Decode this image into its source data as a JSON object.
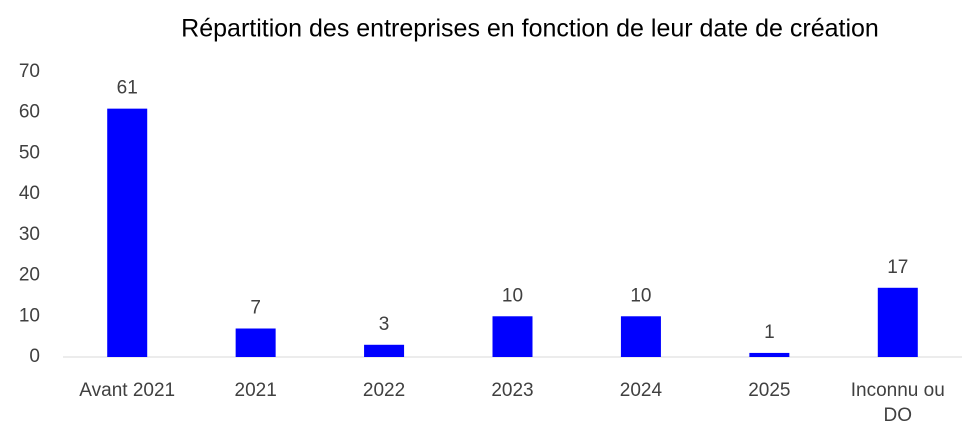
{
  "chart_data": {
    "type": "bar",
    "title": "Répartition des entreprises en fonction de leur date de création",
    "categories": [
      "Avant 2021",
      "2021",
      "2022",
      "2023",
      "2024",
      "2025",
      "Inconnu ou DO"
    ],
    "values": [
      61,
      7,
      3,
      10,
      10,
      1,
      17
    ],
    "color": "#0000ff",
    "ylim": [
      0,
      70
    ],
    "yticks": [
      0,
      10,
      20,
      30,
      40,
      50,
      60,
      70
    ],
    "grid": false
  }
}
